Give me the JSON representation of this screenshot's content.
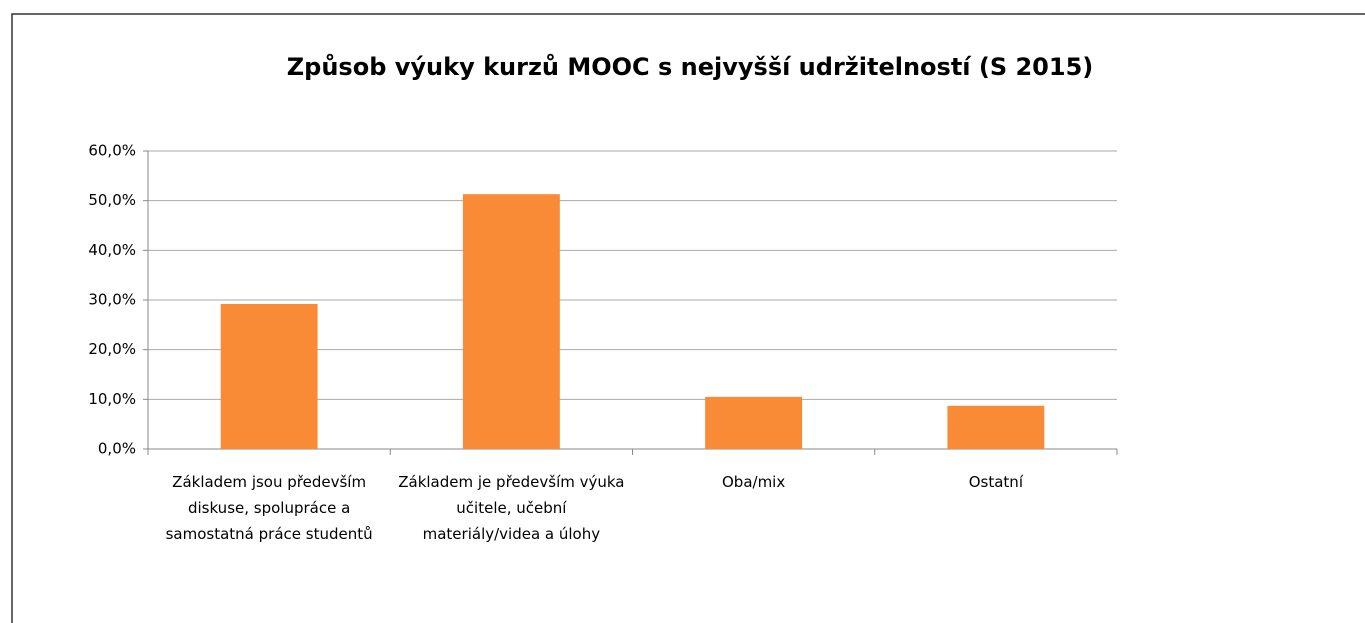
{
  "chart_data": {
    "type": "bar",
    "title": "Způsob výuky kurzů MOOC s nejvyšší udržitelností (S 2015)",
    "categories": [
      "Základem jsou především diskuse, spolupráce a samostatná práce studentů",
      "Základem je především výuka učitele, učební materiály/videa a úlohy",
      "Oba/mix",
      "Ostatní"
    ],
    "values": [
      29.2,
      51.3,
      10.5,
      8.7
    ],
    "color": "#f98b36",
    "ylim": [
      0,
      60
    ],
    "yticks": [
      {
        "value": 0,
        "label": "0,0%"
      },
      {
        "value": 10,
        "label": "10,0%"
      },
      {
        "value": 20,
        "label": "20,0%"
      },
      {
        "value": 30,
        "label": "30,0%"
      },
      {
        "value": 40,
        "label": "40,0%"
      },
      {
        "value": 50,
        "label": "50,0%"
      },
      {
        "value": 60,
        "label": "60,0%"
      }
    ],
    "grid": true
  }
}
